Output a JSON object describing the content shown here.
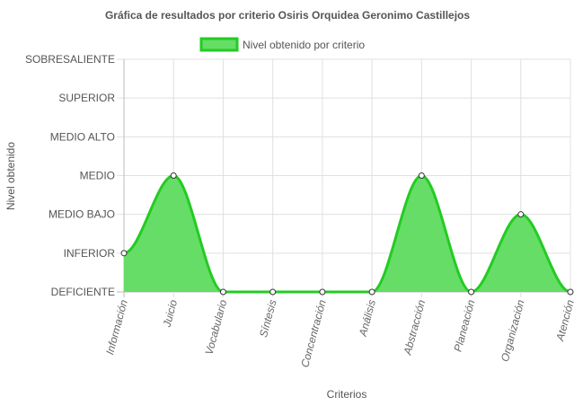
{
  "chart_data": {
    "type": "area",
    "title": "Gráfica de resultados por criterio Osiris Orquidea Geronimo Castillejos",
    "xlabel": "Criterios",
    "ylabel": "Nivel obtenido",
    "y_levels": [
      "DEFICIENTE",
      "INFERIOR",
      "MEDIO BAJO",
      "MEDIO",
      "MEDIO ALTO",
      "SUPERIOR",
      "SOBRESALIENTE"
    ],
    "ylim": [
      0,
      6
    ],
    "categories": [
      "Información",
      "Juicio",
      "Vocabulario",
      "Síntesis",
      "Concentración",
      "Análisis",
      "Abstracción",
      "Planeación",
      "Organización",
      "Atención"
    ],
    "series": [
      {
        "name": "Nivel obtenido por criterio",
        "values": [
          1,
          3,
          0,
          0,
          0,
          0,
          3,
          0,
          2,
          0
        ]
      }
    ],
    "grid": true,
    "legend_position": "top",
    "colors": {
      "fill": "#66dd66",
      "line": "#22cc22",
      "point_fill": "#ffffff",
      "point_stroke": "#333333",
      "grid": "#e0e0e0"
    }
  }
}
